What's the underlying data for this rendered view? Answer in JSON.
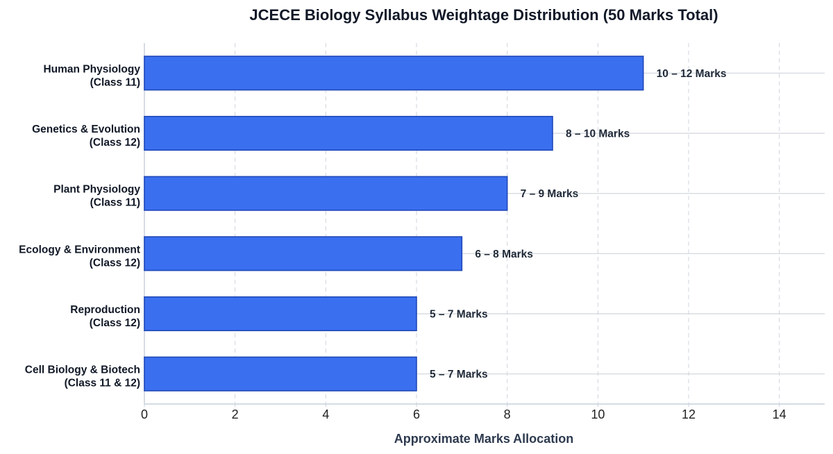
{
  "chart_data": {
    "type": "bar",
    "orientation": "horizontal",
    "title": "JCECE Biology Syllabus Weightage Distribution (50 Marks Total)",
    "xlabel": "Approximate Marks Allocation",
    "ylabel": "",
    "xlim": [
      0,
      15
    ],
    "xticks": [
      "0",
      "2",
      "4",
      "6",
      "8",
      "10",
      "12",
      "14"
    ],
    "grid": "vertical dashed",
    "categories": [
      [
        "Human Physiology",
        "(Class 11)"
      ],
      [
        "Genetics & Evolution",
        "(Class 12)"
      ],
      [
        "Plant Physiology",
        "(Class 11)"
      ],
      [
        "Ecology & Environment",
        "(Class 12)"
      ],
      [
        "Reproduction",
        "(Class 12)"
      ],
      [
        "Cell Biology & Biotech",
        "(Class 11 & 12)"
      ]
    ],
    "values": [
      11,
      9,
      8,
      7,
      6,
      6
    ],
    "data_labels": [
      "10 – 12 Marks",
      "8 – 10 Marks",
      "7 – 9 Marks",
      "6 – 8 Marks",
      "5 – 7 Marks",
      "5 – 7 Marks"
    ],
    "colors": {
      "bar_fill": "#3a6ff0",
      "bar_edge": "#1f48b8",
      "grid": "#cfd4dc",
      "axis": "#c8d0dc"
    }
  }
}
